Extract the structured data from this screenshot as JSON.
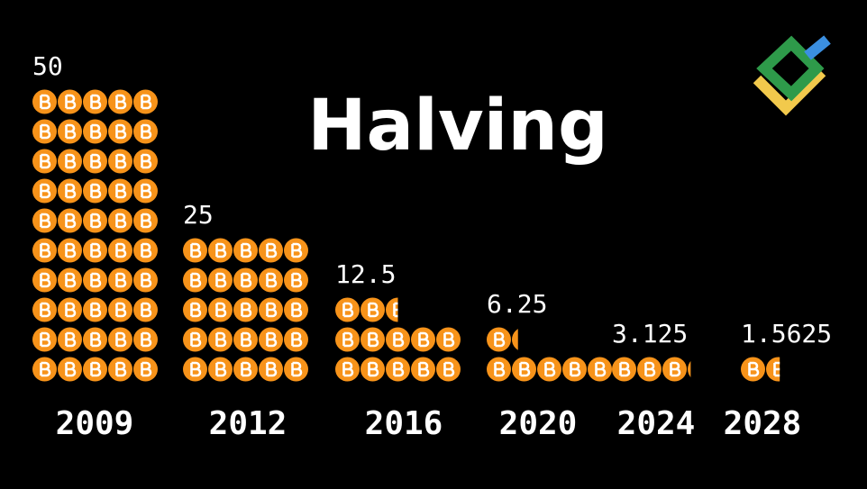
{
  "chart_data": {
    "type": "pictogram",
    "title": "Halving",
    "categories": [
      "2009",
      "2012",
      "2016",
      "2020",
      "2024",
      "2028"
    ],
    "values": [
      50,
      25,
      12.5,
      6.25,
      3.125,
      1.5625
    ],
    "color": "#f7931a"
  }
}
